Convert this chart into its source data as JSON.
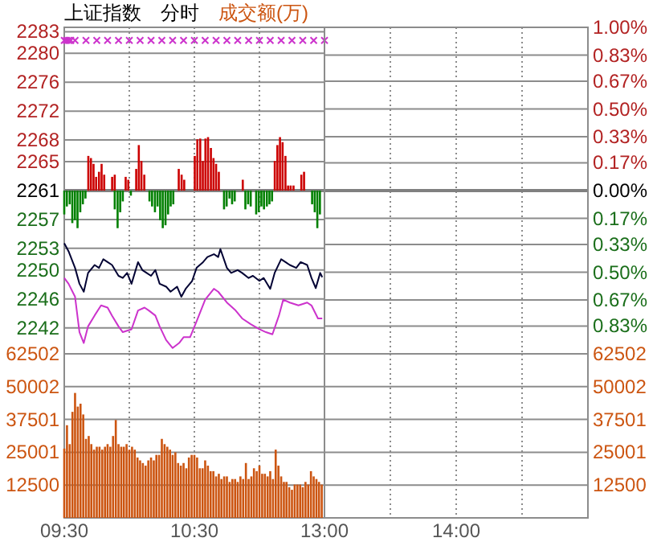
{
  "chart_data": [
    {
      "type": "line",
      "title": "上证指数",
      "subtitle": "分时",
      "annotations": [
        "成交额(万)"
      ],
      "xlim": [
        9.5,
        11.5
      ],
      "xticks": [
        {
          "value": 9.5,
          "label": null
        },
        {
          "value": 10,
          "label": null
        },
        {
          "value": 10.5,
          "label": null
        },
        {
          "value": 11,
          "label": null
        }
      ],
      "ylim": [
        2238.4,
        2283.6
      ],
      "yticks": [
        2283,
        2280,
        2276,
        2272,
        2268,
        2265,
        2261,
        2257,
        2253,
        2250,
        2246,
        2242
      ],
      "tick_labels": "y",
      "grid": true,
      "ref_lines": [
        {
          "axis": "y",
          "value": 2261,
          "color": "#808080",
          "line_style": "solid"
        }
      ],
      "series": [
        {
          "type": "bar",
          "color": "#cc0000",
          "x": [
            9.685,
            9.705,
            9.725,
            9.745,
            9.767,
            9.787,
            9.807,
            9.868,
            9.888,
            9.972,
            9.992,
            10.053,
            10.073,
            10.093,
            10.115,
            10.38,
            10.402,
            10.422,
            10.503,
            10.523,
            10.545,
            10.565,
            10.585,
            10.605,
            10.627,
            10.647,
            10.667,
            10.688,
            10.872,
            11.118,
            11.138,
            11.158,
            11.178,
            11.2,
            11.22,
            11.24,
            11.262,
            11.322,
            11.343
          ],
          "base": [
            2261,
            2261,
            2261,
            2261,
            2261,
            2261,
            2261,
            2261,
            2261,
            2261,
            2261,
            2261,
            2261,
            2261,
            2261,
            2261,
            2261,
            2261,
            2261,
            2261,
            2261,
            2261,
            2261,
            2261,
            2261,
            2261,
            2261,
            2261,
            2261,
            2261,
            2261,
            2261,
            2261,
            2261,
            2261,
            2261,
            2261,
            2261,
            2261
          ],
          "values": [
            4.8,
            4.5,
            3.7,
            1.9,
            2.6,
            3.7,
            2.2,
            1.9,
            2.2,
            1.9,
            1.5,
            3.0,
            6.3,
            4.1,
            2.2,
            3.0,
            2.2,
            1.5,
            4.8,
            7.1,
            7.2,
            4.1,
            7.2,
            7.4,
            5.9,
            4.5,
            3.7,
            2.6,
            1.5,
            4.1,
            6.3,
            7.4,
            6.7,
            4.8,
            0.7,
            0.7,
            0.7,
            2.2,
            2.6
          ]
        },
        {
          "type": "bar",
          "color": "#008000",
          "x": [
            9.5,
            9.52,
            9.542,
            9.562,
            9.582,
            9.602,
            9.623,
            9.643,
            9.663,
            9.888,
            9.91,
            9.93,
            9.95,
            10.012,
            10.155,
            10.175,
            10.197,
            10.217,
            10.237,
            10.257,
            10.278,
            10.298,
            10.318,
            10.338,
            10.728,
            10.748,
            10.77,
            10.79,
            10.81,
            10.892,
            10.913,
            10.933,
            10.975,
            10.995,
            11.015,
            11.035,
            11.057,
            11.077,
            11.097,
            11.405,
            11.425,
            11.445,
            11.465
          ],
          "base": [
            2261,
            2261,
            2261,
            2261,
            2261,
            2261,
            2261,
            2261,
            2261,
            2261,
            2261,
            2261,
            2261,
            2261,
            2261,
            2261,
            2261,
            2261,
            2261,
            2261,
            2261,
            2261,
            2261,
            2261,
            2261,
            2261,
            2261,
            2261,
            2261,
            2261,
            2261,
            2261,
            2261,
            2261,
            2261,
            2261,
            2261,
            2261,
            2261,
            2261,
            2261,
            2261,
            2261
          ],
          "values": [
            -3.3,
            -2.2,
            -1.9,
            -4.5,
            -4.1,
            -5.2,
            -3.0,
            -1.9,
            -1.1,
            -2.6,
            -5.2,
            -3.0,
            -1.5,
            -0.7,
            -1.5,
            -2.2,
            -3.0,
            -2.2,
            -4.1,
            -5.2,
            -4.8,
            -3.3,
            -2.2,
            -1.9,
            -2.6,
            -2.2,
            -1.1,
            -1.9,
            -1.5,
            -2.6,
            -1.9,
            -2.2,
            -3.3,
            -3.0,
            -2.2,
            -2.6,
            -2.2,
            -1.9,
            -1.5,
            -1.9,
            -3.0,
            -5.2,
            -3.3
          ]
        },
        {
          "color": "#000033",
          "x": [
            9.5,
            9.533,
            9.583,
            9.617,
            9.65,
            9.683,
            9.733,
            9.767,
            9.8,
            9.833,
            9.867,
            9.917,
            9.95,
            9.983,
            10.017,
            10.067,
            10.1,
            10.133,
            10.167,
            10.2,
            10.233,
            10.283,
            10.317,
            10.367,
            10.4,
            10.433,
            10.483,
            10.517,
            10.567,
            10.6,
            10.65,
            10.683,
            10.7,
            10.75,
            10.783,
            10.833,
            10.867,
            10.917,
            10.95,
            11.0,
            11.033,
            11.083,
            11.117,
            11.167,
            11.2,
            11.233,
            11.283,
            11.317,
            11.367,
            11.4,
            11.433,
            11.467,
            11.483
          ],
          "values": [
            2253.7,
            2252.6,
            2250.3,
            2248.1,
            2247.0,
            2249.6,
            2250.7,
            2250.3,
            2251.5,
            2251.1,
            2250.7,
            2249.2,
            2248.9,
            2249.6,
            2248.1,
            2251.1,
            2250.0,
            2249.6,
            2249.2,
            2250.0,
            2248.1,
            2247.7,
            2247.0,
            2247.7,
            2246.3,
            2247.4,
            2248.5,
            2250.3,
            2251.1,
            2251.8,
            2252.2,
            2251.8,
            2252.9,
            2250.3,
            2249.6,
            2250.0,
            2249.6,
            2248.9,
            2249.2,
            2248.5,
            2248.9,
            2247.4,
            2249.6,
            2251.5,
            2251.1,
            2250.7,
            2250.3,
            2251.1,
            2250.7,
            2248.9,
            2247.5,
            2249.6,
            2249.0
          ]
        },
        {
          "type": "line",
          "color": "#cc33cc",
          "x": [
            9.5,
            9.533,
            9.583,
            9.617,
            9.65,
            9.683,
            9.733,
            9.783,
            9.833,
            9.867,
            9.917,
            9.95,
            9.983,
            10.017,
            10.067,
            10.117,
            10.15,
            10.2,
            10.233,
            10.283,
            10.333,
            10.383,
            10.417,
            10.467,
            10.517,
            10.583,
            10.65,
            10.683,
            10.75,
            10.817,
            10.867,
            10.933,
            11.0,
            11.05,
            11.1,
            11.15,
            11.183,
            11.233,
            11.3,
            11.367,
            11.4,
            11.45,
            11.483
          ],
          "values": [
            2248.9,
            2248.1,
            2246.3,
            2241.4,
            2239.9,
            2242.2,
            2243.7,
            2245.1,
            2244.8,
            2243.7,
            2242.2,
            2241.4,
            2241.6,
            2241.8,
            2244.4,
            2244.8,
            2244.4,
            2243.7,
            2242.2,
            2240.3,
            2239.2,
            2239.9,
            2240.7,
            2240.7,
            2242.9,
            2245.9,
            2247.4,
            2247.0,
            2245.5,
            2244.4,
            2243.3,
            2242.5,
            2241.8,
            2241.4,
            2241.1,
            2243.7,
            2245.9,
            2245.5,
            2245.1,
            2245.5,
            2245.1,
            2243.3,
            2243.3
          ]
        },
        {
          "type": "scatter",
          "color": "#cc33cc",
          "marker": "cross",
          "x": [
            9.5,
            9.517,
            9.533,
            9.55,
            9.583,
            9.667,
            9.75,
            9.833,
            9.917,
            10.0,
            10.083,
            10.167,
            10.25,
            10.333,
            10.417,
            10.5,
            10.583,
            10.667,
            10.75,
            10.833,
            10.917,
            11.0,
            11.083,
            11.167,
            11.25,
            11.333,
            11.417,
            11.5
          ],
          "values": [
            2281.8,
            2281.8,
            2281.8,
            2281.8,
            2281.8,
            2281.8,
            2281.8,
            2281.8,
            2281.8,
            2281.8,
            2281.8,
            2281.8,
            2281.8,
            2281.8,
            2281.8,
            2281.8,
            2281.8,
            2281.8,
            2281.8,
            2281.8,
            2281.8,
            2281.8,
            2281.8,
            2281.8,
            2281.8,
            2281.8,
            2281.8,
            2281.8
          ]
        }
      ]
    },
    {
      "type": "line",
      "xlim": [
        13,
        15
      ],
      "xticks": [
        {
          "value": 13,
          "label": null
        },
        {
          "value": 13.5,
          "label": null
        },
        {
          "value": 14,
          "label": null
        },
        {
          "value": 14.5,
          "label": null
        }
      ],
      "y2lim": [
        -1.0,
        1.0
      ],
      "y2ticks": [
        {
          "value": 1.0,
          "label": "1.00%"
        },
        {
          "value": 0.83,
          "label": "0.83%"
        },
        {
          "value": 0.67,
          "label": "0.67%"
        },
        {
          "value": 0.5,
          "label": "0.50%"
        },
        {
          "value": 0.33,
          "label": "0.33%"
        },
        {
          "value": 0.17,
          "label": "0.17%"
        },
        {
          "value": 0,
          "label": "0.00%"
        },
        {
          "value": -0.17,
          "label": "0.17%"
        },
        {
          "value": -0.33,
          "label": "0.33%"
        },
        {
          "value": -0.5,
          "label": "0.50%"
        },
        {
          "value": -0.67,
          "label": "0.67%"
        },
        {
          "value": -0.83,
          "label": "0.83%"
        }
      ],
      "tick_labels": "y",
      "grid": true,
      "ref_lines": [
        {
          "axis": "y2",
          "value": 0,
          "color": "#808080",
          "line_style": "solid"
        }
      ]
    },
    {
      "type": "bar",
      "xlim": [
        9.5,
        11.5
      ],
      "xticks": [
        {
          "value": 9.5,
          "label": "09:30"
        },
        {
          "value": 10,
          "label": null
        },
        {
          "value": 10.5,
          "label": "10:30"
        },
        {
          "value": 11,
          "label": null
        }
      ],
      "ylim": [
        0,
        62502
      ],
      "yticks": [
        12500,
        25001,
        37501,
        50002,
        62502
      ],
      "grid": true,
      "series": [
        {
          "color": "#cc5511",
          "x": [
            9.5,
            9.521,
            9.542,
            9.563,
            9.583,
            9.604,
            9.625,
            9.646,
            9.667,
            9.688,
            9.708,
            9.729,
            9.75,
            9.771,
            9.792,
            9.813,
            9.833,
            9.854,
            9.875,
            9.896,
            9.917,
            9.938,
            9.958,
            9.979,
            10.0,
            10.021,
            10.042,
            10.063,
            10.083,
            10.104,
            10.125,
            10.146,
            10.167,
            10.188,
            10.208,
            10.229,
            10.25,
            10.271,
            10.292,
            10.313,
            10.333,
            10.354,
            10.375,
            10.396,
            10.417,
            10.438,
            10.458,
            10.479,
            10.5,
            10.521,
            10.542,
            10.563,
            10.583,
            10.604,
            10.625,
            10.646,
            10.667,
            10.688,
            10.708,
            10.729,
            10.75,
            10.771,
            10.792,
            10.813,
            10.833,
            10.854,
            10.875,
            10.896,
            10.917,
            10.938,
            10.958,
            10.979,
            11.0,
            11.021,
            11.042,
            11.063,
            11.083,
            11.104,
            11.125,
            11.146,
            11.167,
            11.188,
            11.208,
            11.229,
            11.25,
            11.271,
            11.292,
            11.313,
            11.333,
            11.354,
            11.375,
            11.396,
            11.417,
            11.438,
            11.458,
            11.479
          ],
          "values": [
            26400,
            35300,
            28100,
            40400,
            47600,
            42400,
            43500,
            39400,
            30100,
            31200,
            28100,
            26000,
            27100,
            27100,
            26000,
            27100,
            28100,
            27100,
            31200,
            37300,
            28100,
            27100,
            27100,
            28100,
            26000,
            27100,
            26000,
            23000,
            21900,
            20900,
            19900,
            21900,
            23000,
            21900,
            24000,
            24000,
            30100,
            28100,
            27100,
            26000,
            24000,
            25000,
            20900,
            19900,
            20900,
            18900,
            23000,
            24000,
            24000,
            23000,
            18900,
            18900,
            21900,
            19900,
            17800,
            17800,
            15800,
            16800,
            14800,
            15800,
            15800,
            13700,
            14800,
            14800,
            13700,
            15800,
            14800,
            20900,
            14800,
            15800,
            18900,
            17800,
            19900,
            16800,
            16800,
            15800,
            17800,
            14800,
            26000,
            19900,
            15800,
            13700,
            13700,
            11700,
            10700,
            12700,
            12700,
            12700,
            11700,
            13700,
            12700,
            17800,
            15800,
            14800,
            13700,
            12700
          ]
        }
      ]
    },
    {
      "type": "bar",
      "xlim": [
        13,
        15
      ],
      "xticks": [
        {
          "value": 13,
          "label": "13:00"
        },
        {
          "value": 13.5,
          "label": null
        },
        {
          "value": 14,
          "label": "14:00"
        },
        {
          "value": 14.5,
          "label": null
        }
      ],
      "y2lim": [
        0,
        62502
      ],
      "y2ticks": [
        12500,
        25001,
        37501,
        50002,
        62502
      ],
      "grid": true
    }
  ]
}
